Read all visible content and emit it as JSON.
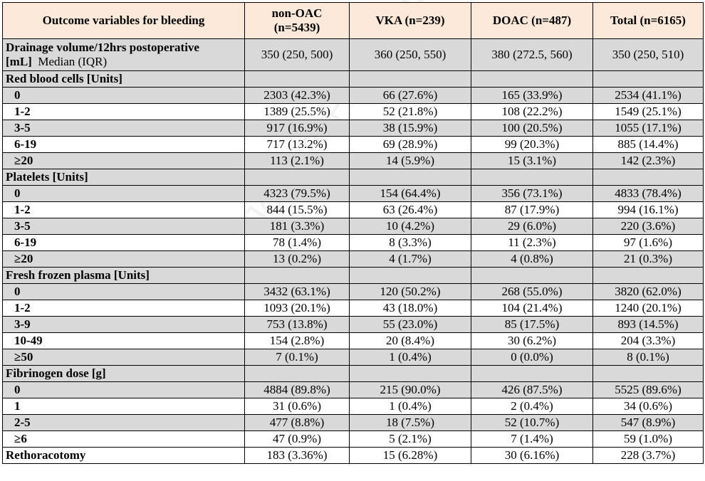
{
  "table": {
    "headers": [
      "Outcome variables for bleeding",
      "non-OAC (n=5439)",
      "VKA (n=239)",
      "DOAC (n=487)",
      "Total (n=6165)"
    ],
    "drainage": {
      "label_bold": "Drainage volume/12hrs postoperative [mL]",
      "label_normal": "Median (IQR)",
      "values": [
        "350 (250, 500)",
        "360 (250, 550)",
        "380 (272.5, 560)",
        "350 (250, 510)"
      ]
    },
    "sections": [
      {
        "title": "Red blood cells [Units]",
        "rows": [
          {
            "label": "0",
            "values": [
              "2303 (42.3%)",
              "66 (27.6%)",
              "165 (33.9%)",
              "2534 (41.1%)"
            ]
          },
          {
            "label": "1-2",
            "values": [
              "1389 (25.5%)",
              "52 (21.8%)",
              "108 (22.2%)",
              "1549 (25.1%)"
            ]
          },
          {
            "label": "3-5",
            "values": [
              "917 (16.9%)",
              "38 (15.9%)",
              "100 (20.5%)",
              "1055 (17.1%)"
            ]
          },
          {
            "label": "6-19",
            "values": [
              "717 (13.2%)",
              "69 (28.9%)",
              "99 (20.3%)",
              "885 (14.4%)"
            ]
          },
          {
            "label": "≥20",
            "values": [
              "113 (2.1%)",
              "14 (5.9%)",
              "15 (3.1%)",
              "142 (2.3%)"
            ]
          }
        ]
      },
      {
        "title": "Platelets [Units]",
        "rows": [
          {
            "label": "0",
            "values": [
              "4323 (79.5%)",
              "154 (64.4%)",
              "356 (73.1%)",
              "4833 (78.4%)"
            ]
          },
          {
            "label": "1-2",
            "values": [
              "844 (15.5%)",
              "63 (26.4%)",
              "87 (17.9%)",
              "994 (16.1%)"
            ]
          },
          {
            "label": "3-5",
            "values": [
              "181 (3.3%)",
              "10 (4.2%)",
              "29 (6.0%)",
              "220 (3.6%)"
            ]
          },
          {
            "label": "6-19",
            "values": [
              "78 (1.4%)",
              "8 (3.3%)",
              "11 (2.3%)",
              "97 (1.6%)"
            ]
          },
          {
            "label": "≥20",
            "values": [
              "13 (0.2%)",
              "4 (1.7%)",
              "4 (0.8%)",
              "21 (0.3%)"
            ]
          }
        ]
      },
      {
        "title": "Fresh frozen plasma [Units]",
        "rows": [
          {
            "label": "0",
            "values": [
              "3432 (63.1%)",
              "120 (50.2%)",
              "268 (55.0%)",
              "3820 (62.0%)"
            ]
          },
          {
            "label": "1-2",
            "values": [
              "1093 (20.1%)",
              "43 (18.0%)",
              "104 (21.4%)",
              "1240 (20.1%)"
            ]
          },
          {
            "label": "3-9",
            "values": [
              "753 (13.8%)",
              "55 (23.0%)",
              "85 (17.5%)",
              "893 (14.5%)"
            ]
          },
          {
            "label": "10-49",
            "values": [
              "154 (2.8%)",
              "20 (8.4%)",
              "30 (6.2%)",
              "204 (3.3%)"
            ]
          },
          {
            "label": "≥50",
            "values": [
              "7 (0.1%)",
              "1 (0.4%)",
              "0 (0.0%)",
              "8 (0.1%)"
            ]
          }
        ]
      },
      {
        "title": "Fibrinogen dose [g]",
        "rows": [
          {
            "label": "0",
            "values": [
              "4884 (89.8%)",
              "215 (90.0%)",
              "426 (87.5%)",
              "5525 (89.6%)"
            ]
          },
          {
            "label": "1",
            "values": [
              "31 (0.6%)",
              "1 (0.4%)",
              "2 (0.4%)",
              "34 (0.6%)"
            ]
          },
          {
            "label": "2-5",
            "values": [
              "477 (8.8%)",
              "18 (7.5%)",
              "52 (10.7%)",
              "547 (8.9%)"
            ]
          },
          {
            "label": "≥6",
            "values": [
              "47 (0.9%)",
              "5 (2.1%)",
              "7 (1.4%)",
              "59 (1.0%)"
            ]
          }
        ]
      }
    ],
    "rethoracotomy": {
      "label": "Rethoracotomy",
      "values": [
        "183 (3.36%)",
        "15 (6.28%)",
        "30 (6.16%)",
        "228 (3.7%)"
      ]
    }
  },
  "watermark": "Journal Pre-proof",
  "colors": {
    "header_bg": "#fde9d9",
    "shade_bg": "#d9d9d9"
  }
}
